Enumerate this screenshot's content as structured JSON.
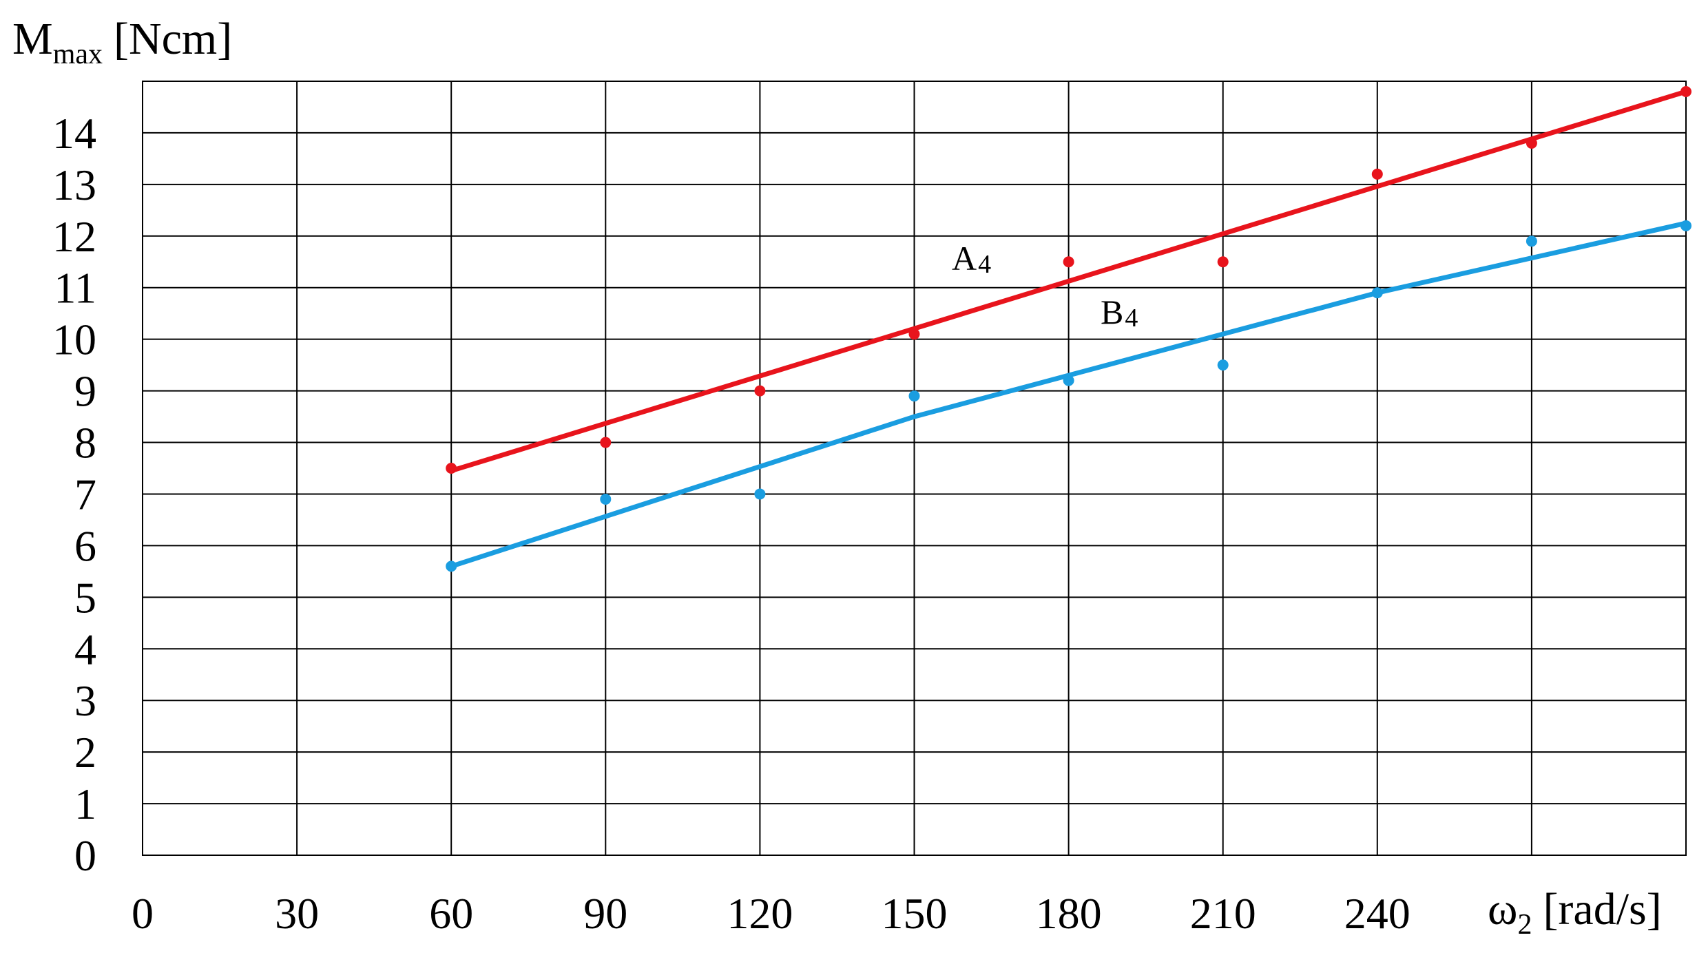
{
  "chart_data": {
    "type": "scatter",
    "ylabel": {
      "main": "M",
      "sub": "max",
      "unit": "[Ncm]"
    },
    "xlabel": {
      "main": "ω",
      "sub": "2",
      "unit": "[rad/s]"
    },
    "x_tick_labels": [
      "0",
      "30",
      "60",
      "90",
      "120",
      "150",
      "180",
      "210",
      "240"
    ],
    "y_tick_labels": [
      "0",
      "1",
      "2",
      "3",
      "4",
      "5",
      "6",
      "7",
      "8",
      "9",
      "10",
      "11",
      "12",
      "13",
      "14"
    ],
    "xlim": [
      0,
      300
    ],
    "ylim": [
      0,
      15
    ],
    "grid": true,
    "series": [
      {
        "name": "A4",
        "label_main": "A",
        "label_sub": "4",
        "color": "#e8141c",
        "x": [
          60,
          90,
          120,
          150,
          180,
          210,
          240,
          270,
          300
        ],
        "y": [
          7.5,
          8.0,
          9.0,
          10.1,
          11.5,
          11.5,
          13.2,
          13.8,
          14.8
        ],
        "fit": {
          "x": [
            60,
            300
          ],
          "y": [
            7.45,
            14.8
          ]
        }
      },
      {
        "name": "B4",
        "label_main": "B",
        "label_sub": "4",
        "color": "#1a9de0",
        "x": [
          60,
          90,
          120,
          150,
          180,
          210,
          240,
          270,
          300
        ],
        "y": [
          5.6,
          6.9,
          7.0,
          8.9,
          9.2,
          9.5,
          10.9,
          11.9,
          12.2
        ],
        "fit": {
          "x": [
            60,
            150,
            240,
            300
          ],
          "y": [
            5.6,
            8.5,
            10.9,
            12.25
          ]
        }
      }
    ]
  }
}
